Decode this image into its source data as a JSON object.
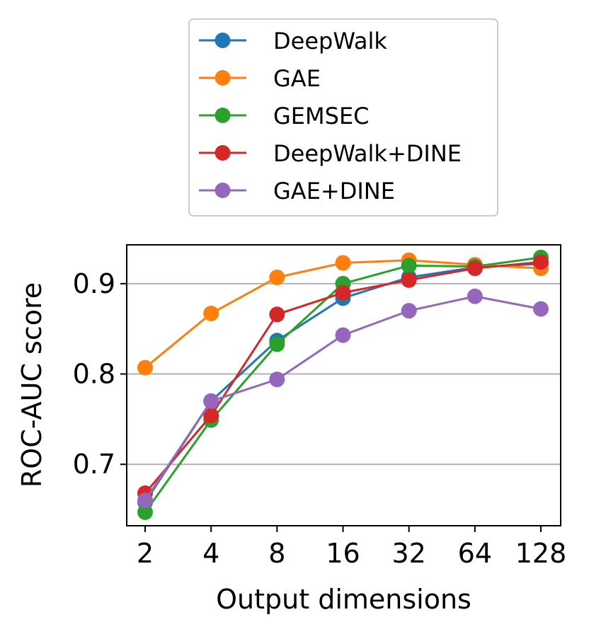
{
  "chart_data": {
    "type": "line",
    "title": "",
    "xlabel": "Output dimensions",
    "ylabel": "ROC-AUC score",
    "categories": [
      "2",
      "4",
      "8",
      "16",
      "32",
      "64",
      "128"
    ],
    "ylim": [
      0.632,
      0.943
    ],
    "yticks": [
      0.7,
      0.8,
      0.9
    ],
    "ytick_labels": [
      "0.7",
      "0.8",
      "0.9"
    ],
    "grid": "horizontal",
    "legend_position": "top-center, outside plot",
    "series": [
      {
        "name": "DeepWalk",
        "color": "#1f77b4",
        "values": [
          0.658,
          0.77,
          0.837,
          0.884,
          0.907,
          0.918,
          0.922
        ]
      },
      {
        "name": "GAE",
        "color": "#ff7f0e",
        "values": [
          0.807,
          0.867,
          0.907,
          0.923,
          0.926,
          0.921,
          0.917
        ]
      },
      {
        "name": "GEMSEC",
        "color": "#2ca02c",
        "values": [
          0.647,
          0.749,
          0.833,
          0.9,
          0.92,
          0.919,
          0.929
        ]
      },
      {
        "name": "DeepWalk+DINE",
        "color": "#d62728",
        "values": [
          0.668,
          0.754,
          0.866,
          0.89,
          0.904,
          0.917,
          0.924
        ]
      },
      {
        "name": "GAE+DINE",
        "color": "#9467bd",
        "values": [
          0.66,
          0.77,
          0.794,
          0.843,
          0.87,
          0.886,
          0.872
        ]
      }
    ]
  }
}
